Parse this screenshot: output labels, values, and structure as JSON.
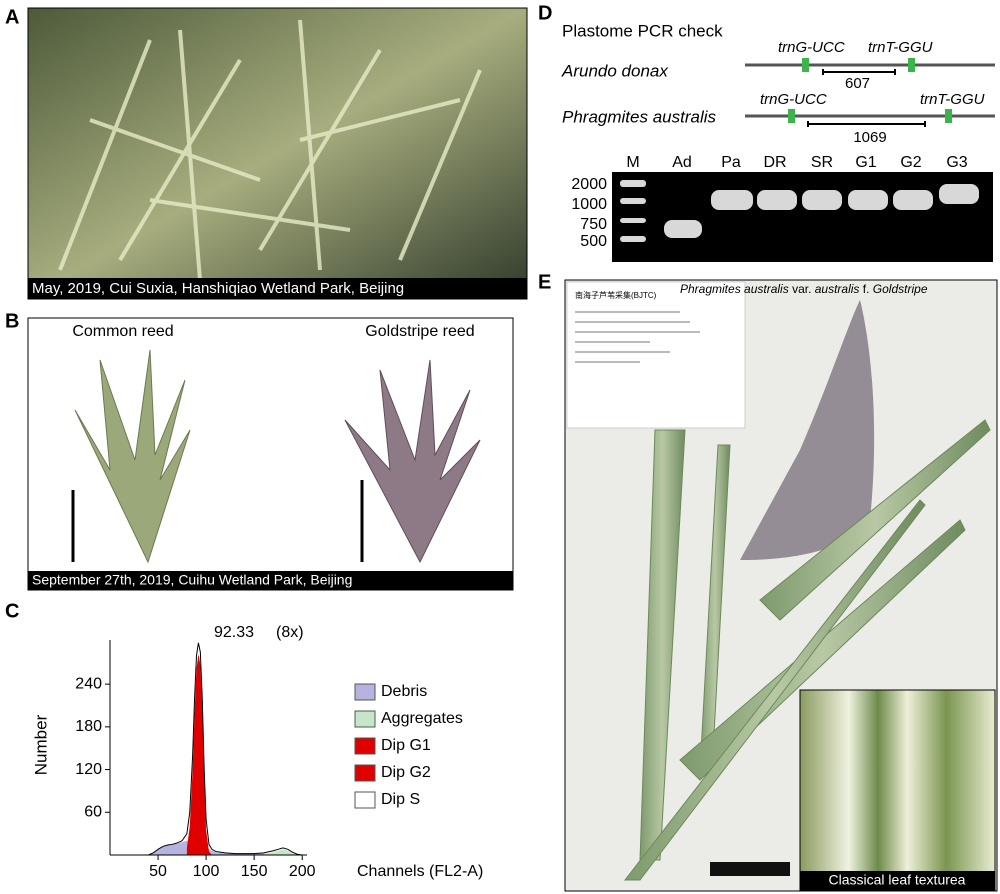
{
  "panel_a": {
    "label": "A",
    "caption": "May, 2019, Cui Suxia, Hanshiqiao Wetland Park, Beijing"
  },
  "panel_b": {
    "label": "B",
    "left_title": "Common reed",
    "right_title": "Goldstripe reed",
    "caption": "September 27th, 2019, Cuihu Wetland Park, Beijing"
  },
  "chart_data": {
    "type": "area",
    "label": "C",
    "annotation": "92.33",
    "annotation_note": "(8x)",
    "xlabel": "Channels (FL2-A)",
    "ylabel": "Number",
    "x": [
      40,
      45,
      50,
      55,
      60,
      65,
      70,
      75,
      80,
      83,
      86,
      88,
      90,
      92,
      94,
      96,
      98,
      100,
      103,
      106,
      110,
      120,
      130,
      140,
      150,
      160,
      170,
      175,
      180,
      185,
      190,
      195,
      200
    ],
    "series": [
      {
        "name": "Debris",
        "color": "#b7b3e0",
        "values": [
          0,
          3,
          8,
          12,
          14,
          15,
          16,
          18,
          20,
          20,
          18,
          17,
          16,
          15,
          14,
          13,
          12,
          10,
          8,
          6,
          4,
          3,
          2,
          2,
          2,
          2,
          2,
          2,
          2,
          2,
          1,
          1,
          0
        ]
      },
      {
        "name": "Aggregates",
        "color": "#c5e6c9",
        "values": [
          null,
          null,
          null,
          null,
          null,
          null,
          null,
          null,
          null,
          null,
          null,
          null,
          null,
          null,
          null,
          null,
          null,
          null,
          null,
          null,
          null,
          null,
          null,
          null,
          null,
          1,
          4,
          6,
          8,
          6,
          3,
          1,
          0
        ]
      },
      {
        "name": "Dip G1",
        "color": "#e00000",
        "values": [
          null,
          null,
          null,
          null,
          null,
          null,
          null,
          null,
          10,
          40,
          120,
          200,
          262,
          282,
          268,
          205,
          105,
          35,
          5,
          0,
          null,
          null,
          null,
          null,
          null,
          null,
          null,
          null,
          null,
          null,
          null,
          null,
          null
        ]
      },
      {
        "name": "Dip G2",
        "color": "#e00000",
        "values": [
          null,
          null,
          null,
          null,
          null,
          null,
          null,
          null,
          null,
          null,
          null,
          null,
          null,
          null,
          null,
          null,
          null,
          null,
          null,
          null,
          null,
          null,
          null,
          null,
          null,
          null,
          null,
          null,
          null,
          null,
          null,
          null,
          null
        ]
      },
      {
        "name": "Dip S",
        "color": "#ffffff",
        "values": [
          0,
          3,
          8,
          12,
          14,
          15,
          17,
          20,
          30,
          60,
          140,
          220,
          280,
          298,
          285,
          220,
          120,
          50,
          15,
          8,
          5,
          3,
          2,
          2,
          2,
          3,
          6,
          8,
          10,
          8,
          4,
          1,
          0
        ]
      }
    ],
    "xlim": [
      0,
      205
    ],
    "ylim": [
      0,
      302
    ],
    "xticks": [
      50,
      100,
      150,
      200
    ],
    "yticks": [
      60,
      120,
      180,
      240
    ]
  },
  "panel_d": {
    "label": "D",
    "title": "Plastome PCR check",
    "species_1": "Arundo donax",
    "species_2": "Phragmites australis",
    "gene_1a": "trnG-UCC",
    "gene_1b": "trnT-GGU",
    "size_1": "607",
    "gene_2a": "trnG-UCC",
    "gene_2b": "trnT-GGU",
    "size_2": "1069",
    "lanes": [
      "M",
      "Ad",
      "Pa",
      "DR",
      "SR",
      "G1",
      "G2",
      "G3"
    ],
    "ladder": [
      "2000",
      "1000",
      "750",
      "500"
    ]
  },
  "panel_e": {
    "label": "E",
    "title_parts": [
      "Phragmites australis",
      "var.",
      "australis",
      "f.",
      "Goldstripe"
    ],
    "sheet_header": "南海子芦苇采集(BJTC)",
    "inset_caption": "Classical leaf texturea"
  }
}
